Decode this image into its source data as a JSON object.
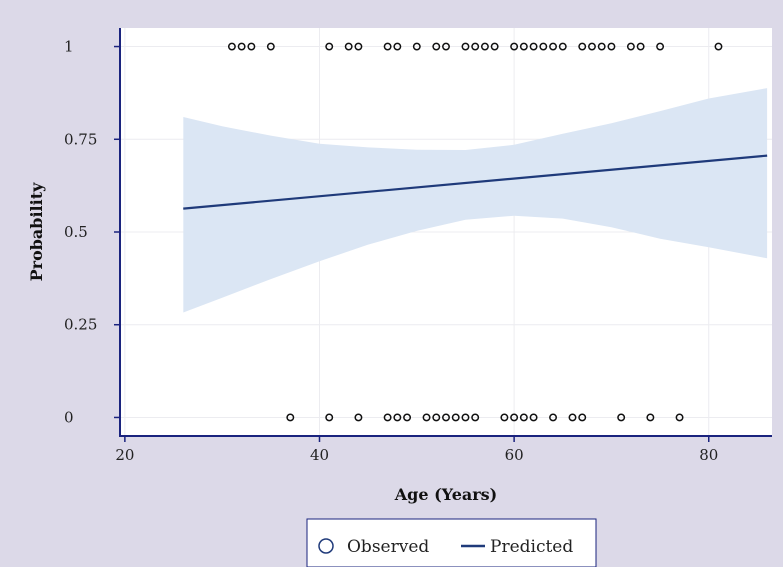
{
  "chart_data": {
    "type": "scatter",
    "title": "",
    "xlabel": "Age (Years)",
    "ylabel": "Probability",
    "xlim": [
      19.5,
      86.5
    ],
    "ylim": [
      -0.05,
      1.05
    ],
    "x_ticks": [
      20,
      40,
      60,
      80
    ],
    "x_tick_labels": [
      "20",
      "40",
      "60",
      "80"
    ],
    "y_ticks": [
      0,
      0.25,
      0.5,
      0.75,
      1
    ],
    "y_tick_labels": [
      "0",
      "0.25",
      "0.5",
      "0.75",
      "1"
    ],
    "grid": true,
    "legend_position": "bottom",
    "series": [
      {
        "name": "Observed",
        "kind": "scatter",
        "marker": "hollow-circle",
        "color": "#111111",
        "points": [
          [
            31,
            1
          ],
          [
            32,
            1
          ],
          [
            33,
            1
          ],
          [
            35,
            1
          ],
          [
            41,
            1
          ],
          [
            43,
            1
          ],
          [
            44,
            1
          ],
          [
            47,
            1
          ],
          [
            48,
            1
          ],
          [
            50,
            1
          ],
          [
            52,
            1
          ],
          [
            53,
            1
          ],
          [
            55,
            1
          ],
          [
            56,
            1
          ],
          [
            57,
            1
          ],
          [
            58,
            1
          ],
          [
            60,
            1
          ],
          [
            61,
            1
          ],
          [
            62,
            1
          ],
          [
            63,
            1
          ],
          [
            64,
            1
          ],
          [
            65,
            1
          ],
          [
            67,
            1
          ],
          [
            68,
            1
          ],
          [
            69,
            1
          ],
          [
            70,
            1
          ],
          [
            72,
            1
          ],
          [
            73,
            1
          ],
          [
            75,
            1
          ],
          [
            81,
            1
          ],
          [
            37,
            0
          ],
          [
            41,
            0
          ],
          [
            44,
            0
          ],
          [
            47,
            0
          ],
          [
            48,
            0
          ],
          [
            49,
            0
          ],
          [
            51,
            0
          ],
          [
            52,
            0
          ],
          [
            53,
            0
          ],
          [
            54,
            0
          ],
          [
            55,
            0
          ],
          [
            56,
            0
          ],
          [
            59,
            0
          ],
          [
            60,
            0
          ],
          [
            61,
            0
          ],
          [
            62,
            0
          ],
          [
            64,
            0
          ],
          [
            66,
            0
          ],
          [
            67,
            0
          ],
          [
            71,
            0
          ],
          [
            74,
            0
          ],
          [
            77,
            0
          ]
        ]
      },
      {
        "name": "Predicted",
        "kind": "line",
        "color": "#1f3a7a",
        "x": [
          26,
          86
        ],
        "y": [
          0.563,
          0.706
        ]
      }
    ],
    "confidence_band": {
      "color": "#dbe6f4",
      "x": [
        26,
        30,
        35,
        40,
        45,
        50,
        55,
        60,
        65,
        70,
        75,
        80,
        86
      ],
      "lower": [
        0.283,
        0.323,
        0.373,
        0.421,
        0.466,
        0.503,
        0.533,
        0.544,
        0.536,
        0.513,
        0.482,
        0.459,
        0.429
      ],
      "upper": [
        0.81,
        0.785,
        0.76,
        0.738,
        0.728,
        0.722,
        0.721,
        0.735,
        0.765,
        0.793,
        0.826,
        0.86,
        0.888
      ]
    }
  },
  "legend": {
    "observed_label": "Observed",
    "predicted_label": "Predicted"
  },
  "colors": {
    "page_background": "#dcd9e8",
    "plot_background": "#ffffff",
    "axis": "#1a237e",
    "grid": "#ececf0"
  }
}
